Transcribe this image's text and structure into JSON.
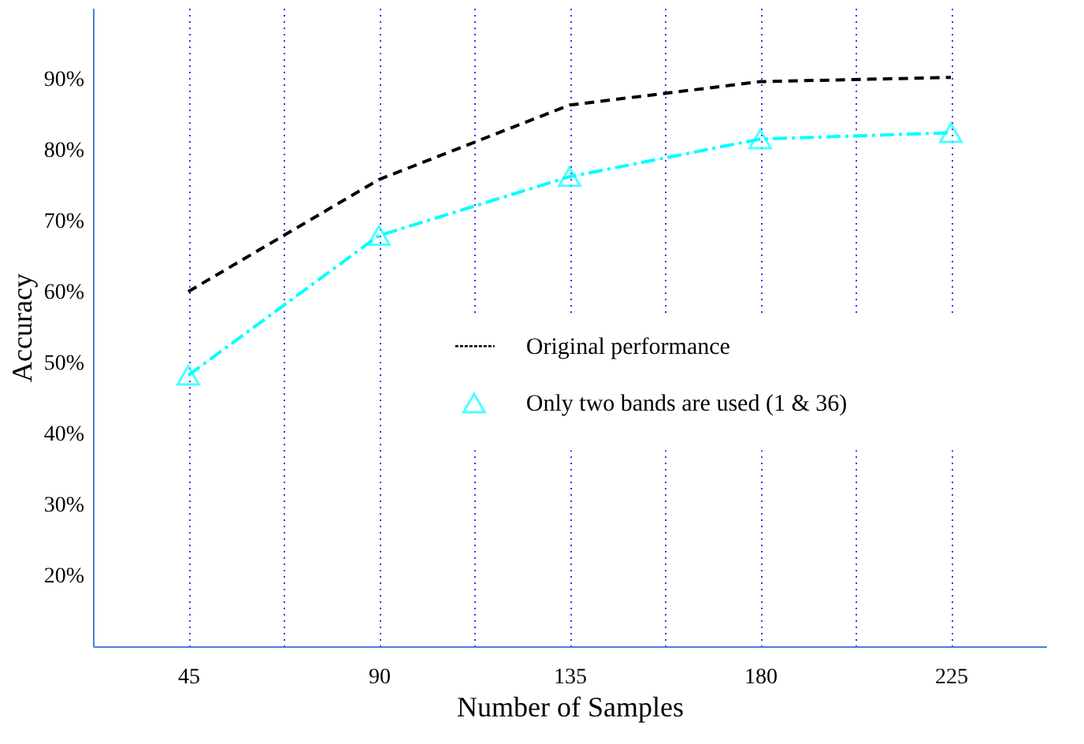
{
  "chart_data": {
    "type": "line",
    "xlabel": "Number of Samples",
    "ylabel": "Accuracy",
    "x": [
      45,
      90,
      135,
      180,
      225
    ],
    "series": [
      {
        "name": "Original performance",
        "color": "#000000",
        "values": [
          60,
          75.8,
          86.3,
          89.6,
          90.2
        ],
        "line_style": "dashed",
        "marker": "none"
      },
      {
        "name": "Only two bands are used (1 & 36)",
        "color": "#00ffff",
        "values": [
          48.2,
          67.9,
          76.2,
          81.5,
          82.4
        ],
        "line_style": "dashdot",
        "marker": "triangle"
      }
    ],
    "xlim": [
      22.5,
      247.5
    ],
    "ylim": [
      10,
      100
    ],
    "xticks": [
      45,
      {
        "value": 67.5,
        "label": null
      },
      90,
      {
        "value": 112.5,
        "label": null
      },
      135,
      {
        "value": 157.5,
        "label": null
      },
      180,
      {
        "value": 202.5,
        "label": null
      },
      225
    ],
    "yticks": [
      {
        "value": 20,
        "label": "20%"
      },
      {
        "value": 30,
        "label": "30%"
      },
      {
        "value": 40,
        "label": "40%"
      },
      {
        "value": 50,
        "label": "50%"
      },
      {
        "value": 60,
        "label": "60%"
      },
      {
        "value": 70,
        "label": "70%"
      },
      {
        "value": 80,
        "label": "80%"
      },
      {
        "value": 90,
        "label": "90%"
      }
    ],
    "grid": "x",
    "legend": "center"
  }
}
